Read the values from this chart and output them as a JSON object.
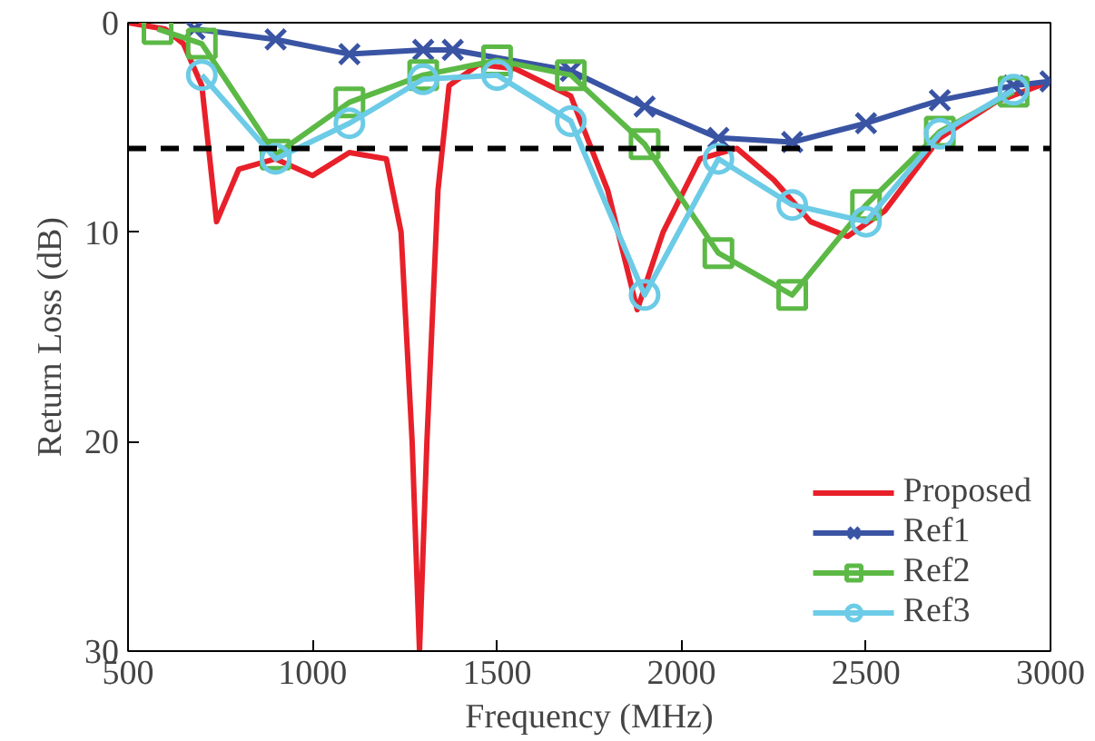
{
  "chart_data": {
    "type": "line",
    "xlabel": "Frequency (MHz)",
    "ylabel": "Return Loss (dB)",
    "xlim": [
      500,
      3000
    ],
    "ylim": [
      30,
      0
    ],
    "xticks": [
      500,
      1000,
      1500,
      2000,
      2500,
      3000
    ],
    "yticks": [
      0,
      10,
      20,
      30
    ],
    "grid": false,
    "legend": "bottom right",
    "line_style": "solid",
    "ref_lines": [
      {
        "axis": "y",
        "value": 6,
        "label": null,
        "color": "#000000",
        "line_style": "dashed"
      }
    ],
    "series": [
      {
        "name": "Proposed",
        "color": "#e8202a",
        "marker": "none",
        "x": [
          500,
          600,
          650,
          700,
          740,
          800,
          900,
          1000,
          1100,
          1200,
          1240,
          1270,
          1290,
          1310,
          1340,
          1370,
          1450,
          1550,
          1700,
          1800,
          1880,
          1950,
          2050,
          2150,
          2250,
          2350,
          2450,
          2550,
          2700,
          2850,
          3000
        ],
        "values": [
          0,
          0.3,
          1,
          3,
          9.5,
          7,
          6.5,
          7.3,
          6.2,
          6.5,
          10,
          20,
          30,
          20,
          8,
          3,
          2,
          2.2,
          3.5,
          8,
          13.7,
          10,
          6.5,
          6,
          7.5,
          9.5,
          10.2,
          9,
          5.5,
          3.8,
          2.8
        ]
      },
      {
        "name": "Ref1",
        "color": "#3a54a4",
        "marker": "cross",
        "x": [
          680,
          900,
          1100,
          1300,
          1380,
          1700,
          1900,
          2100,
          2300,
          2500,
          2700,
          2900,
          3000
        ],
        "values": [
          0.3,
          0.8,
          1.5,
          1.3,
          1.3,
          2.3,
          4,
          5.5,
          5.7,
          4.8,
          3.7,
          3.0,
          2.8
        ]
      },
      {
        "name": "Ref2",
        "color": "#5cb946",
        "marker": "square",
        "x": [
          580,
          700,
          900,
          1100,
          1300,
          1500,
          1700,
          1900,
          2100,
          2300,
          2500,
          2700,
          2900
        ],
        "values": [
          0.3,
          1.0,
          6.3,
          3.8,
          2.5,
          1.8,
          2.5,
          5.8,
          11,
          13,
          8.7,
          5.2,
          3.3
        ]
      },
      {
        "name": "Ref3",
        "color": "#6ccbe6",
        "marker": "circle",
        "x": [
          700,
          900,
          1100,
          1300,
          1500,
          1700,
          1900,
          2100,
          2300,
          2500,
          2700,
          2900
        ],
        "values": [
          2.5,
          6.5,
          4.8,
          2.7,
          2.5,
          4.7,
          13,
          6.5,
          8.7,
          9.5,
          5.3,
          3.2
        ]
      }
    ]
  }
}
